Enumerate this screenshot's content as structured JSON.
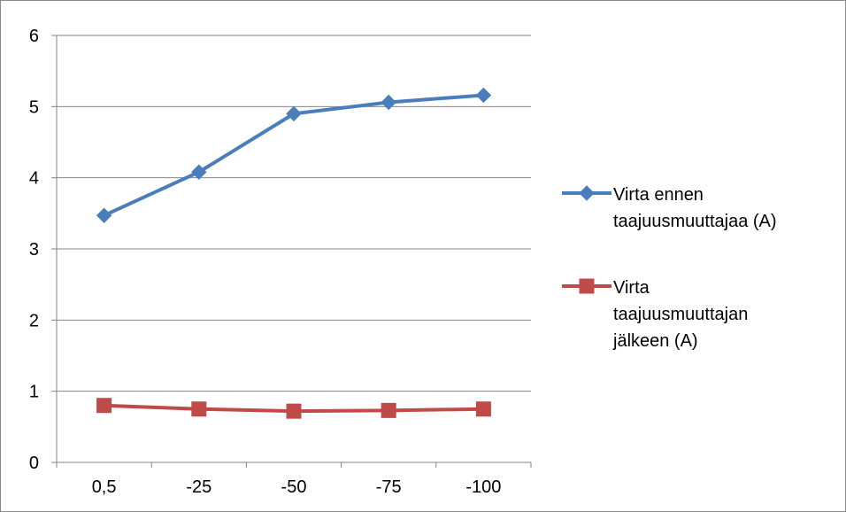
{
  "chart_data": {
    "type": "line",
    "title": "",
    "xlabel": "",
    "ylabel": "",
    "categories": [
      "0,5",
      "-25",
      "-50",
      "-75",
      "-100"
    ],
    "ylim": [
      0,
      6
    ],
    "yticks": [
      "0",
      "1",
      "2",
      "3",
      "4",
      "5",
      "6"
    ],
    "grid": true,
    "legend_position": "right",
    "series": [
      {
        "name": "Virta ennen taajuusmuuttajaa (A)",
        "legend_lines": [
          "Virta ennen",
          "taajuusmuuttajaa (A)"
        ],
        "values": [
          3.47,
          4.08,
          4.9,
          5.06,
          5.16
        ],
        "color": "#4a7ebb",
        "marker": "diamond"
      },
      {
        "name": "Virta taajuusmuuttajan jälkeen (A)",
        "legend_lines": [
          "Virta",
          "taajuusmuuttajan",
          "jälkeen (A)"
        ],
        "values": [
          0.8,
          0.75,
          0.72,
          0.73,
          0.75
        ],
        "color": "#be4b48",
        "marker": "square"
      }
    ]
  }
}
